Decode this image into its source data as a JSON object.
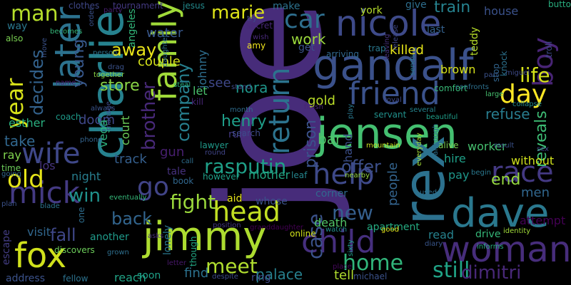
{
  "words": [
    {
      "text": "joe",
      "color": "#472c7a"
    },
    {
      "text": "jensen",
      "color": "#44bf70"
    },
    {
      "text": "charlie",
      "color": "#26818e"
    },
    {
      "text": "gandalf",
      "color": "#3b518b"
    },
    {
      "text": "rex",
      "color": "#2c718e"
    },
    {
      "text": "jimmy",
      "color": "#addc30"
    },
    {
      "text": "nicole",
      "color": "#3e4a89"
    },
    {
      "text": "family",
      "color": "#a0da39"
    },
    {
      "text": "dave",
      "color": "#2a788e"
    },
    {
      "text": "woman",
      "color": "#472d7b"
    },
    {
      "text": "later",
      "color": "#2c728e"
    },
    {
      "text": "friend",
      "color": "#3b528b"
    },
    {
      "text": "fox",
      "color": "#d0e11c"
    },
    {
      "text": "child",
      "color": "#462f7e"
    },
    {
      "text": "wife",
      "color": "#3f4889"
    },
    {
      "text": "mick",
      "color": "#443a83"
    },
    {
      "text": "head",
      "color": "#c2df23"
    },
    {
      "text": "rasputin",
      "color": "#1fa088"
    },
    {
      "text": "help",
      "color": "#3e4989"
    },
    {
      "text": "race",
      "color": "#443983"
    },
    {
      "text": "return",
      "color": "#2c738e"
    },
    {
      "text": "car",
      "color": "#2e6e8e"
    },
    {
      "text": "boy",
      "color": "#482475"
    },
    {
      "text": "day",
      "color": "#fde725"
    },
    {
      "text": "year",
      "color": "#d8e219"
    },
    {
      "text": "man",
      "color": "#b5de2b"
    },
    {
      "text": "old",
      "color": "#e5e419"
    },
    {
      "text": "go",
      "color": "#414487"
    },
    {
      "text": "still",
      "color": "#20a386"
    },
    {
      "text": "life",
      "color": "#d5e21a"
    },
    {
      "text": "company",
      "color": "#277f8e"
    },
    {
      "text": "decides",
      "color": "#33628d"
    },
    {
      "text": "home",
      "color": "#31b57b"
    },
    {
      "text": "meet",
      "color": "#b0dd2f"
    },
    {
      "text": "dimitri",
      "color": "#482878"
    },
    {
      "text": "new",
      "color": "#355f8d"
    },
    {
      "text": "fight",
      "color": "#9bd93c"
    },
    {
      "text": "marie",
      "color": "#dde318"
    },
    {
      "text": "case",
      "color": "#3b528b"
    },
    {
      "text": "brother",
      "color": "#482979"
    },
    {
      "text": "win",
      "color": "#20928c"
    },
    {
      "text": "young",
      "color": "#38588c"
    },
    {
      "text": "away",
      "color": "#eae51a"
    },
    {
      "text": "store",
      "color": "#8bd646"
    },
    {
      "text": "back",
      "color": "#32658e"
    },
    {
      "text": "fall",
      "color": "#3f4788"
    },
    {
      "text": "offer",
      "color": "#3c4f8a"
    },
    {
      "text": "prison",
      "color": "#3b528b"
    },
    {
      "text": "train",
      "color": "#26828e"
    },
    {
      "text": "end",
      "color": "#95d840"
    },
    {
      "text": "refuse",
      "color": "#287c8e"
    },
    {
      "text": "reveals",
      "color": "#3dbc74"
    },
    {
      "text": "palace",
      "color": "#27808e"
    },
    {
      "text": "henry",
      "color": "#1f9e89"
    },
    {
      "text": "work",
      "color": "#9bd93c"
    },
    {
      "text": "nora",
      "color": "#1f968b"
    },
    {
      "text": "johnny",
      "color": "#2e6e8e"
    },
    {
      "text": "people",
      "color": "#33638d"
    },
    {
      "text": "take",
      "color": "#31678e"
    },
    {
      "text": "men",
      "color": "#31678e"
    },
    {
      "text": "esther",
      "color": "#29af7f"
    },
    {
      "text": "doom",
      "color": "#3f4788"
    },
    {
      "text": "gun",
      "color": "#481f70"
    },
    {
      "text": "couple",
      "color": "#d5e21a"
    },
    {
      "text": "water",
      "color": "#38588c"
    },
    {
      "text": "killed",
      "color": "#e5e419"
    },
    {
      "text": "gold",
      "color": "#bade28"
    },
    {
      "text": "see",
      "color": "#3f4889"
    },
    {
      "text": "kill",
      "color": "#482677"
    },
    {
      "text": "let",
      "color": "#4ac16d"
    },
    {
      "text": "hand",
      "color": "#3c4f8a"
    },
    {
      "text": "bar",
      "color": "#52c569"
    },
    {
      "text": "angeles",
      "color": "#32b67a"
    },
    {
      "text": "tell",
      "color": "#b0dd2f"
    },
    {
      "text": "find",
      "color": "#2c718e"
    },
    {
      "text": "mother",
      "color": "#22a884"
    },
    {
      "text": "death",
      "color": "#52c569"
    },
    {
      "text": "pay",
      "color": "#1f978b"
    },
    {
      "text": "court",
      "color": "#6ccd5a"
    },
    {
      "text": "vega",
      "color": "#2db27d"
    },
    {
      "text": "track",
      "color": "#355f8d"
    },
    {
      "text": "ray",
      "color": "#7fd34e"
    },
    {
      "text": "los",
      "color": "#46337e"
    },
    {
      "text": "night",
      "color": "#287d8e"
    },
    {
      "text": "escape",
      "color": "#433d84"
    },
    {
      "text": "visit",
      "color": "#31678e"
    },
    {
      "text": "reach",
      "color": "#20a386"
    },
    {
      "text": "soon",
      "color": "#1fa088"
    },
    {
      "text": "another",
      "color": "#1f9a8a"
    },
    {
      "text": "hire",
      "color": "#1fa088"
    },
    {
      "text": "worker",
      "color": "#46c06f"
    },
    {
      "text": "attempt",
      "color": "#440154"
    },
    {
      "text": "without",
      "color": "#d0e11c"
    },
    {
      "text": "brown",
      "color": "#d8e219"
    },
    {
      "text": "house",
      "color": "#3b528b"
    },
    {
      "text": "york",
      "color": "#b5de2b"
    },
    {
      "text": "give",
      "color": "#2e6e8e"
    },
    {
      "text": "make",
      "color": "#2c728e"
    },
    {
      "text": "get",
      "color": "#3b528b"
    },
    {
      "text": "teddy",
      "color": "#b8de29"
    },
    {
      "text": "last",
      "color": "#34618d"
    },
    {
      "text": "read",
      "color": "#26828e"
    },
    {
      "text": "drive",
      "color": "#35b779"
    },
    {
      "text": "corner",
      "color": "#31688e"
    },
    {
      "text": "apartment",
      "color": "#25ac82"
    },
    {
      "text": "online",
      "color": "#d2e21b"
    },
    {
      "text": "ring",
      "color": "#3e4989"
    },
    {
      "text": "michael",
      "color": "#3b528b"
    },
    {
      "text": "position",
      "color": "#453882"
    },
    {
      "text": "granddaughter",
      "color": "#440154"
    },
    {
      "text": "aid",
      "color": "#e7e419"
    },
    {
      "text": "whose",
      "color": "#3b528b"
    },
    {
      "text": "however",
      "color": "#1fa088"
    },
    {
      "text": "tale",
      "color": "#46317e"
    },
    {
      "text": "book",
      "color": "#31678e"
    },
    {
      "text": "lonely",
      "color": "#2a788e"
    },
    {
      "text": "letter",
      "color": "#48186a"
    },
    {
      "text": "despite",
      "color": "#3e4a89"
    },
    {
      "text": "address",
      "color": "#3b528b"
    },
    {
      "text": "fellow",
      "color": "#2c728e"
    },
    {
      "text": "discovers",
      "color": "#6ccd5a"
    },
    {
      "text": "clothes",
      "color": "#3f4889"
    },
    {
      "text": "party",
      "color": "#481f70"
    },
    {
      "text": "tournament",
      "color": "#443a83"
    },
    {
      "text": "order",
      "color": "#3b528b"
    },
    {
      "text": "jesus",
      "color": "#238a8d"
    },
    {
      "text": "secret",
      "color": "#482878"
    },
    {
      "text": "button",
      "color": "#29af7f"
    },
    {
      "text": "way",
      "color": "#2a788e"
    },
    {
      "text": "also",
      "color": "#7ad151"
    },
    {
      "text": "becomes",
      "color": "#35b779"
    },
    {
      "text": "person",
      "color": "#2c738e"
    },
    {
      "text": "name",
      "color": "#482173"
    },
    {
      "text": "coach",
      "color": "#1e9b8a"
    },
    {
      "text": "phone",
      "color": "#33638d"
    },
    {
      "text": "going",
      "color": "#31688e"
    },
    {
      "text": "time",
      "color": "#6ccd5a"
    },
    {
      "text": "plan",
      "color": "#3b528b"
    },
    {
      "text": "blade",
      "color": "#2b748e"
    },
    {
      "text": "grown",
      "color": "#2e6f8e"
    },
    {
      "text": "leaving",
      "color": "#46327e"
    },
    {
      "text": "comfort",
      "color": "#38b977"
    },
    {
      "text": "confronts",
      "color": "#2d708e"
    },
    {
      "text": "collapse",
      "color": "#238a8d"
    },
    {
      "text": "miguel",
      "color": "#3e4a89"
    },
    {
      "text": "large",
      "color": "#46c06f"
    },
    {
      "text": "alive",
      "color": "#7ad151"
    },
    {
      "text": "mountain",
      "color": "#c8e020"
    },
    {
      "text": "beautiful",
      "color": "#1f9e89"
    },
    {
      "text": "servant",
      "color": "#21918c"
    },
    {
      "text": "several",
      "color": "#25848e"
    },
    {
      "text": "royal",
      "color": "#3e4989"
    },
    {
      "text": "arriving",
      "color": "#31688e"
    },
    {
      "text": "trap",
      "color": "#2a788e"
    },
    {
      "text": "amy",
      "color": "#f1e51d"
    },
    {
      "text": "wish",
      "color": "#482979"
    },
    {
      "text": "stand",
      "color": "#3e4a89"
    },
    {
      "text": "steal",
      "color": "#29af7f"
    },
    {
      "text": "daughter",
      "color": "#2c728e"
    },
    {
      "text": "month",
      "color": "#2f6c8e"
    },
    {
      "text": "run",
      "color": "#443983"
    },
    {
      "text": "search",
      "color": "#3e4a89"
    },
    {
      "text": "lawyer",
      "color": "#1f9a8a"
    },
    {
      "text": "round",
      "color": "#404588"
    },
    {
      "text": "call",
      "color": "#2e6e8e"
    },
    {
      "text": "leaf",
      "color": "#24868e"
    },
    {
      "text": "place",
      "color": "#46085c"
    },
    {
      "text": "nearby",
      "color": "#95d840"
    },
    {
      "text": "watch",
      "color": "#218e8d"
    },
    {
      "text": "good",
      "color": "#e5e419"
    },
    {
      "text": "used",
      "color": "#2e6e8e"
    },
    {
      "text": "begin",
      "color": "#2a788e"
    },
    {
      "text": "informs",
      "color": "#27ad81"
    },
    {
      "text": "identity",
      "color": "#a0da39"
    },
    {
      "text": "diary",
      "color": "#39568c"
    },
    {
      "text": "eventually",
      "color": "#35b779"
    },
    {
      "text": "always",
      "color": "#3a548c"
    },
    {
      "text": "drag",
      "color": "#3b528b"
    },
    {
      "text": "together",
      "color": "#8bd646"
    },
    {
      "text": "asks",
      "color": "#472c7a"
    },
    {
      "text": "though",
      "color": "#22a884"
    },
    {
      "text": "finish",
      "color": "#482475"
    },
    {
      "text": "sends",
      "color": "#2a788e"
    },
    {
      "text": "part",
      "color": "#3b528b"
    },
    {
      "text": "stop",
      "color": "#32658e"
    },
    {
      "text": "knock",
      "color": "#2c728e"
    },
    {
      "text": "troll",
      "color": "#3e4989"
    },
    {
      "text": "result",
      "color": "#3b528b"
    },
    {
      "text": "sex",
      "color": "#3f4889"
    },
    {
      "text": "everyday",
      "color": "#a2da37"
    },
    {
      "text": "although",
      "color": "#2d708e"
    },
    {
      "text": "move",
      "color": "#3b528b"
    },
    {
      "text": "manage",
      "color": "#3d4d8a"
    },
    {
      "text": "one",
      "color": "#2e6e8e"
    },
    {
      "text": "try",
      "color": "#3e4a89"
    },
    {
      "text": "release",
      "color": "#3f4889"
    },
    {
      "text": "sixty",
      "color": "#1f9e89"
    },
    {
      "text": "play",
      "color": "#2a788e"
    }
  ]
}
